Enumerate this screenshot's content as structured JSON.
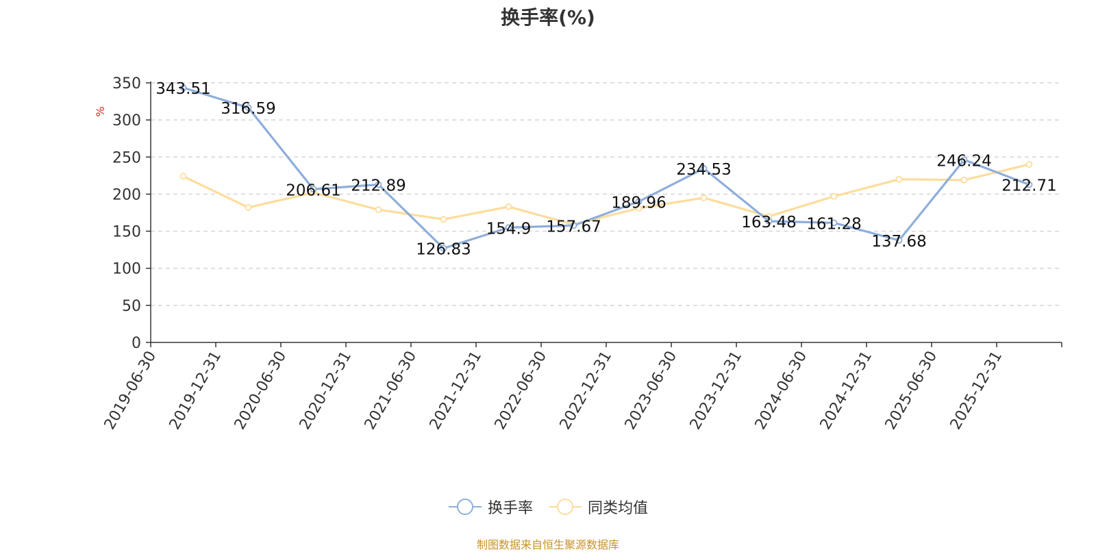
{
  "chart_data": {
    "type": "line",
    "title": "换手率(%)",
    "ylabel": "%",
    "ylim": [
      0,
      350
    ],
    "yticks": [
      0,
      50,
      100,
      150,
      200,
      250,
      300,
      350
    ],
    "grid": true,
    "legend_position": "bottom",
    "categories": [
      "2019-06-30",
      "2019-12-31",
      "2020-06-30",
      "2020-12-31",
      "2021-06-30",
      "2021-12-31",
      "2022-06-30",
      "2022-12-31",
      "2023-06-30",
      "2023-12-31",
      "2024-06-30",
      "2024-12-31",
      "2025-06-30",
      "2025-12-31"
    ],
    "series": [
      {
        "name": "换手率",
        "color": "#8eaedb",
        "show_labels": true,
        "values": [
          343.51,
          316.59,
          206.61,
          212.89,
          126.83,
          154.9,
          157.67,
          189.96,
          234.53,
          163.48,
          161.28,
          137.68,
          246.24,
          212.71
        ]
      },
      {
        "name": "同类均值",
        "color": "#fddc9c",
        "show_labels": false,
        "values": [
          224,
          182,
          202,
          179,
          166,
          183,
          159,
          181,
          195,
          170,
          197,
          220,
          219,
          240
        ]
      }
    ]
  },
  "footer": "制图数据来自恒生聚源数据库"
}
